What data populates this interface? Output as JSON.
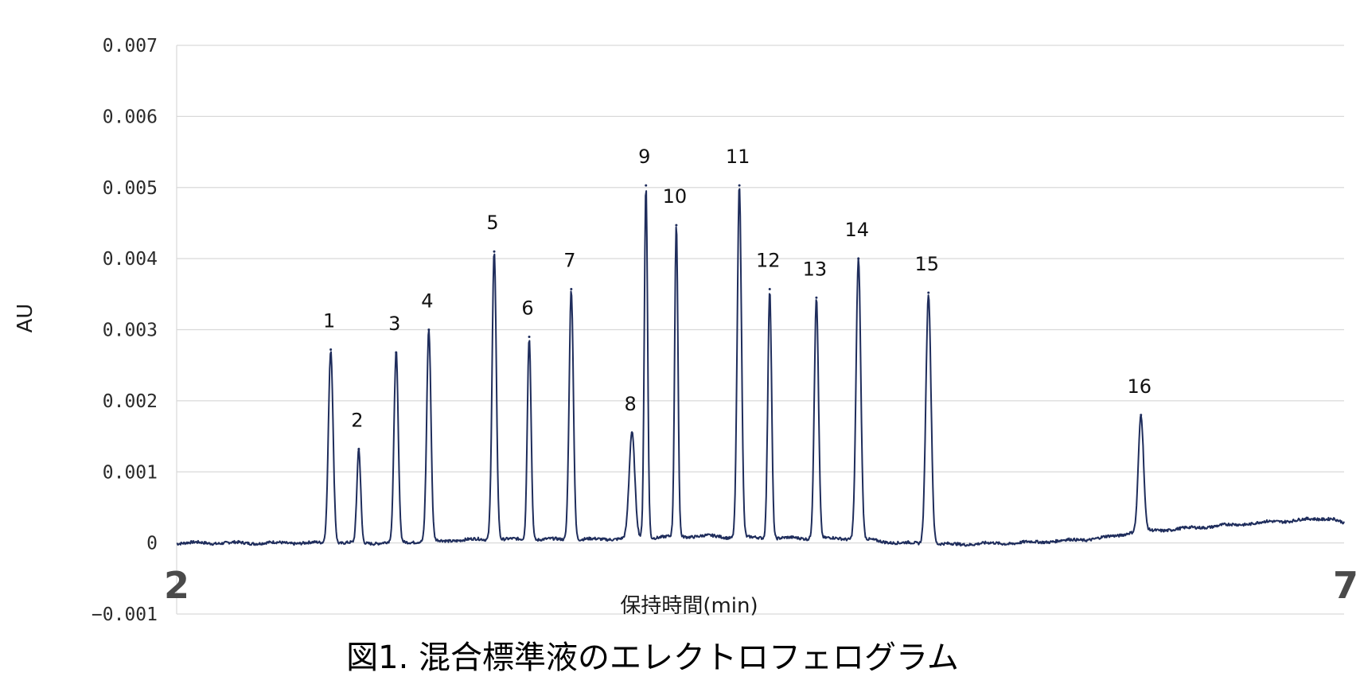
{
  "chart_data": {
    "type": "line",
    "title": "",
    "caption": "図1. 混合標準液のエレクトロフェログラム",
    "xlabel": "保持時間(min)",
    "ylabel": "AU",
    "xlim": [
      2,
      7
    ],
    "ylim": [
      -0.001,
      0.007
    ],
    "x_ticks": [
      "2",
      "7"
    ],
    "y_ticks": [
      "-0.001",
      "0",
      "0.001",
      "0.002",
      "0.003",
      "0.004",
      "0.005",
      "0.006",
      "0.007"
    ],
    "y_tick_labels": [
      "−0.001",
      "0",
      "0.001",
      "0.002",
      "0.003",
      "0.004",
      "0.005",
      "0.006",
      "0.007"
    ],
    "grid": true,
    "line_color": "#1f2d5c",
    "baseline": [
      [
        2.0,
        0.0
      ],
      [
        2.6,
        0.0
      ],
      [
        2.85,
        0.0
      ],
      [
        3.3,
        5e-05
      ],
      [
        3.8,
        5e-05
      ],
      [
        3.95,
        7e-05
      ],
      [
        4.26,
        0.0001
      ],
      [
        4.36,
        8e-05
      ],
      [
        4.52,
        7e-05
      ],
      [
        4.9,
        6e-05
      ],
      [
        5.1,
        0.0
      ],
      [
        5.3,
        -2e-05
      ],
      [
        5.6,
        0.0
      ],
      [
        5.9,
        5e-05
      ],
      [
        6.03,
        0.0001
      ],
      [
        6.08,
        0.00015
      ],
      [
        6.3,
        0.0002
      ],
      [
        6.7,
        0.0003
      ],
      [
        6.95,
        0.00035
      ],
      [
        7.0,
        0.00027
      ]
    ],
    "peaks": [
      {
        "label": "1",
        "x": 2.66,
        "y": 0.00272,
        "w": 0.01
      },
      {
        "label": "2",
        "x": 2.78,
        "y": 0.00132,
        "w": 0.008
      },
      {
        "label": "3",
        "x": 2.94,
        "y": 0.00268,
        "w": 0.009
      },
      {
        "label": "4",
        "x": 3.08,
        "y": 0.003,
        "w": 0.009
      },
      {
        "label": "5",
        "x": 3.36,
        "y": 0.0041,
        "w": 0.009
      },
      {
        "label": "6",
        "x": 3.51,
        "y": 0.0029,
        "w": 0.008
      },
      {
        "label": "7",
        "x": 3.69,
        "y": 0.00357,
        "w": 0.009
      },
      {
        "label": "8",
        "x": 3.95,
        "y": 0.00155,
        "w": 0.012
      },
      {
        "label": "9",
        "x": 4.01,
        "y": 0.00503,
        "w": 0.007
      },
      {
        "label": "10",
        "x": 4.14,
        "y": 0.00447,
        "w": 0.007
      },
      {
        "label": "11",
        "x": 4.41,
        "y": 0.00503,
        "w": 0.009
      },
      {
        "label": "12",
        "x": 4.54,
        "y": 0.00357,
        "w": 0.008
      },
      {
        "label": "13",
        "x": 4.74,
        "y": 0.00345,
        "w": 0.009
      },
      {
        "label": "14",
        "x": 4.92,
        "y": 0.004,
        "w": 0.01
      },
      {
        "label": "15",
        "x": 5.22,
        "y": 0.00352,
        "w": 0.011
      },
      {
        "label": "16",
        "x": 6.13,
        "y": 0.0018,
        "w": 0.011
      }
    ]
  }
}
